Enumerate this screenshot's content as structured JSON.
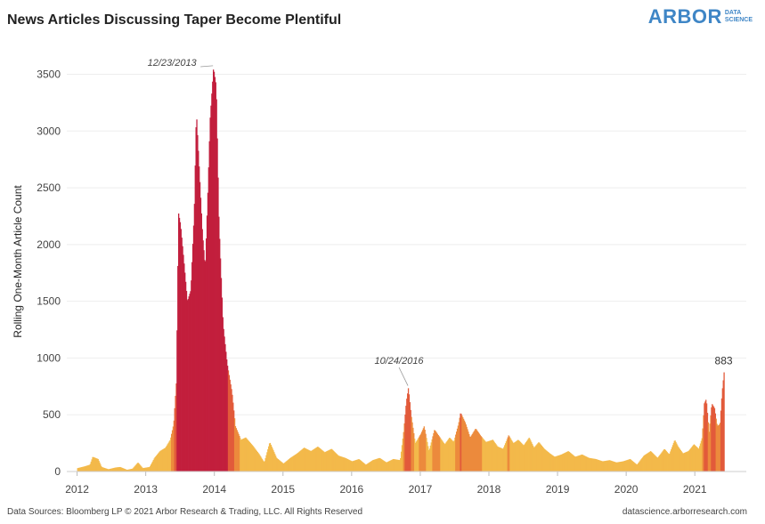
{
  "header": {
    "title": "News Articles Discussing Taper Become Plentiful",
    "logo_main": "ARBOR",
    "logo_sub_1": "DATA",
    "logo_sub_2": "SCIENCE"
  },
  "footer": {
    "left": "Data Sources: Bloomberg LP © 2021 Arbor Research & Trading, LLC. All Rights Reserved",
    "right": "datascience.arborresearch.com"
  },
  "colors": {
    "low": "#f3b94a",
    "mid": "#ec8a3c",
    "high": "#c21f3d",
    "grid": "#eeeeee"
  },
  "chart_data": {
    "type": "area",
    "title": "News Articles Discussing Taper Become Plentiful",
    "xlabel": "",
    "ylabel": "Rolling One-Month Article Count",
    "ylim": [
      0,
      3700
    ],
    "xlim": [
      2011.85,
      2021.75
    ],
    "y_ticks": [
      0,
      500,
      1000,
      1500,
      2000,
      2500,
      3000,
      3500
    ],
    "x_ticks": [
      "2012",
      "2013",
      "2014",
      "2015",
      "2016",
      "2017",
      "2018",
      "2019",
      "2020",
      "2021"
    ],
    "x_tick_values": [
      2012.0,
      2013.0,
      2014.0,
      2015.0,
      2016.0,
      2017.0,
      2018.0,
      2019.0,
      2020.0,
      2021.0
    ],
    "grid": true,
    "color_scale": "value-based: yellow (low) to orange (mid) to crimson (high)",
    "points": [
      [
        2012.0,
        30
      ],
      [
        2012.1,
        45
      ],
      [
        2012.18,
        60
      ],
      [
        2012.22,
        130
      ],
      [
        2012.3,
        110
      ],
      [
        2012.35,
        40
      ],
      [
        2012.45,
        20
      ],
      [
        2012.55,
        35
      ],
      [
        2012.62,
        40
      ],
      [
        2012.72,
        15
      ],
      [
        2012.8,
        25
      ],
      [
        2012.88,
        80
      ],
      [
        2012.95,
        30
      ],
      [
        2013.05,
        40
      ],
      [
        2013.12,
        120
      ],
      [
        2013.2,
        180
      ],
      [
        2013.28,
        210
      ],
      [
        2013.35,
        280
      ],
      [
        2013.4,
        420
      ],
      [
        2013.44,
        800
      ],
      [
        2013.47,
        2280
      ],
      [
        2013.5,
        2180
      ],
      [
        2013.55,
        1850
      ],
      [
        2013.6,
        1500
      ],
      [
        2013.65,
        1600
      ],
      [
        2013.7,
        2300
      ],
      [
        2013.73,
        3180
      ],
      [
        2013.77,
        2700
      ],
      [
        2013.82,
        2100
      ],
      [
        2013.86,
        1800
      ],
      [
        2013.9,
        2500
      ],
      [
        2013.93,
        3100
      ],
      [
        2013.98,
        3560
      ],
      [
        2014.02,
        3400
      ],
      [
        2014.06,
        2200
      ],
      [
        2014.12,
        1300
      ],
      [
        2014.18,
        950
      ],
      [
        2014.25,
        700
      ],
      [
        2014.3,
        400
      ],
      [
        2014.38,
        280
      ],
      [
        2014.45,
        300
      ],
      [
        2014.55,
        230
      ],
      [
        2014.65,
        150
      ],
      [
        2014.72,
        80
      ],
      [
        2014.8,
        260
      ],
      [
        2014.9,
        120
      ],
      [
        2015.0,
        70
      ],
      [
        2015.1,
        120
      ],
      [
        2015.2,
        160
      ],
      [
        2015.3,
        210
      ],
      [
        2015.4,
        180
      ],
      [
        2015.5,
        220
      ],
      [
        2015.6,
        170
      ],
      [
        2015.7,
        200
      ],
      [
        2015.8,
        140
      ],
      [
        2015.9,
        120
      ],
      [
        2016.0,
        90
      ],
      [
        2016.1,
        110
      ],
      [
        2016.2,
        60
      ],
      [
        2016.3,
        100
      ],
      [
        2016.4,
        120
      ],
      [
        2016.5,
        80
      ],
      [
        2016.6,
        110
      ],
      [
        2016.7,
        100
      ],
      [
        2016.75,
        350
      ],
      [
        2016.79,
        620
      ],
      [
        2016.82,
        740
      ],
      [
        2016.86,
        500
      ],
      [
        2016.92,
        250
      ],
      [
        2017.0,
        330
      ],
      [
        2017.05,
        400
      ],
      [
        2017.12,
        180
      ],
      [
        2017.2,
        370
      ],
      [
        2017.28,
        300
      ],
      [
        2017.35,
        240
      ],
      [
        2017.42,
        300
      ],
      [
        2017.48,
        260
      ],
      [
        2017.55,
        420
      ],
      [
        2017.58,
        520
      ],
      [
        2017.65,
        430
      ],
      [
        2017.72,
        300
      ],
      [
        2017.8,
        380
      ],
      [
        2017.88,
        310
      ],
      [
        2017.95,
        260
      ],
      [
        2018.05,
        280
      ],
      [
        2018.12,
        220
      ],
      [
        2018.2,
        200
      ],
      [
        2018.28,
        320
      ],
      [
        2018.35,
        250
      ],
      [
        2018.42,
        280
      ],
      [
        2018.5,
        230
      ],
      [
        2018.58,
        300
      ],
      [
        2018.65,
        210
      ],
      [
        2018.72,
        260
      ],
      [
        2018.8,
        200
      ],
      [
        2018.88,
        160
      ],
      [
        2018.95,
        130
      ],
      [
        2019.05,
        150
      ],
      [
        2019.15,
        180
      ],
      [
        2019.25,
        130
      ],
      [
        2019.35,
        150
      ],
      [
        2019.45,
        120
      ],
      [
        2019.55,
        110
      ],
      [
        2019.65,
        90
      ],
      [
        2019.75,
        100
      ],
      [
        2019.85,
        80
      ],
      [
        2019.95,
        90
      ],
      [
        2020.05,
        110
      ],
      [
        2020.15,
        60
      ],
      [
        2020.25,
        140
      ],
      [
        2020.35,
        180
      ],
      [
        2020.45,
        120
      ],
      [
        2020.55,
        200
      ],
      [
        2020.62,
        150
      ],
      [
        2020.7,
        280
      ],
      [
        2020.75,
        220
      ],
      [
        2020.82,
        160
      ],
      [
        2020.9,
        180
      ],
      [
        2020.98,
        240
      ],
      [
        2021.05,
        200
      ],
      [
        2021.1,
        300
      ],
      [
        2021.13,
        600
      ],
      [
        2021.16,
        640
      ],
      [
        2021.2,
        350
      ],
      [
        2021.24,
        600
      ],
      [
        2021.28,
        560
      ],
      [
        2021.32,
        400
      ],
      [
        2021.36,
        420
      ],
      [
        2021.39,
        700
      ],
      [
        2021.42,
        883
      ]
    ],
    "annotations": [
      {
        "text": "12/23/2013",
        "x": 2013.98,
        "y": 3560
      },
      {
        "text": "10/24/2016",
        "x": 2016.82,
        "y": 740
      },
      {
        "text": "883",
        "x": 2021.42,
        "y": 883
      }
    ]
  }
}
